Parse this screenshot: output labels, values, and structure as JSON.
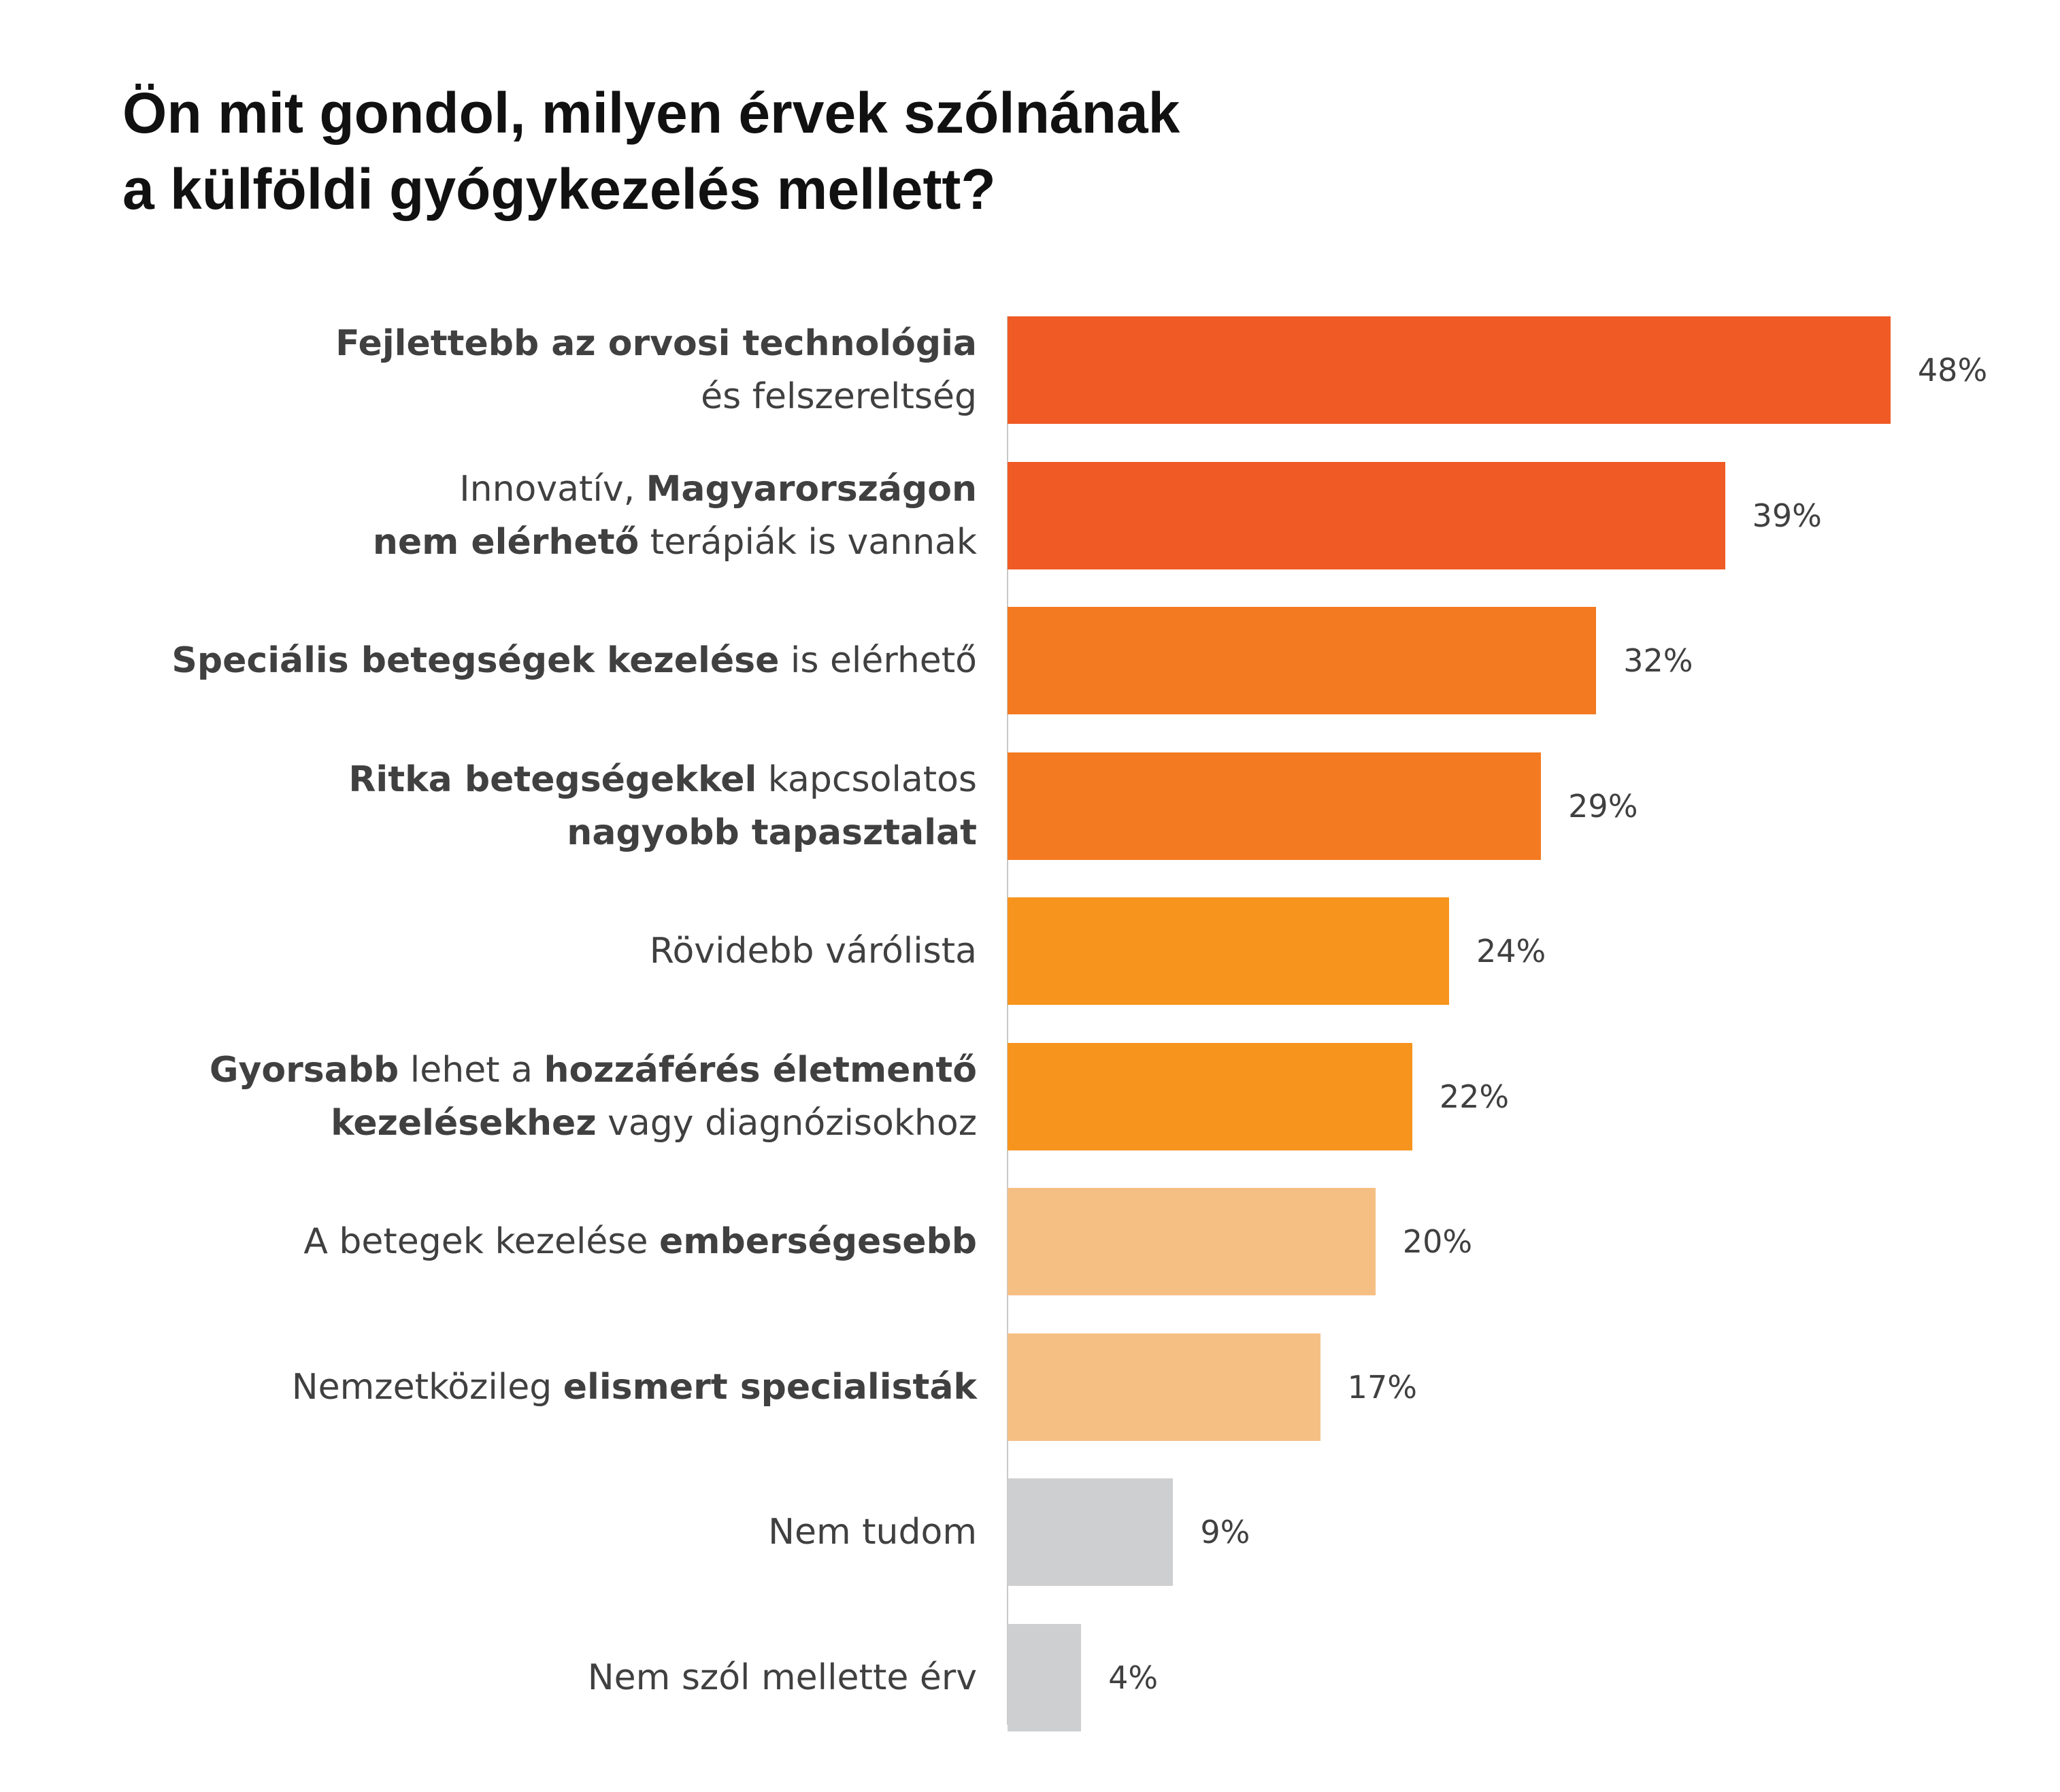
{
  "chart_data": {
    "type": "bar",
    "orientation": "horizontal",
    "title": [
      "Ön mit gondol, milyen érvek szólnának",
      "a külföldi gyógykezelés mellett?"
    ],
    "xlim": [
      0,
      48
    ],
    "grid": false,
    "legend": "none",
    "categories": [
      {
        "lines": [
          [
            {
              "t": "Fejlettebb az orvosi technológia",
              "b": true
            }
          ],
          [
            {
              "t": "és felszereltség",
              "b": false
            }
          ]
        ]
      },
      {
        "lines": [
          [
            {
              "t": "Innovatív, ",
              "b": false
            },
            {
              "t": "Magyarországon",
              "b": true
            }
          ],
          [
            {
              "t": "nem elérhető",
              "b": true
            },
            {
              "t": " terápiák is vannak",
              "b": false
            }
          ]
        ]
      },
      {
        "lines": [
          [
            {
              "t": "Speciális betegségek kezelése",
              "b": true
            },
            {
              "t": " is elérhető",
              "b": false
            }
          ]
        ]
      },
      {
        "lines": [
          [
            {
              "t": "Ritka betegségekkel",
              "b": true
            },
            {
              "t": " kapcsolatos",
              "b": false
            }
          ],
          [
            {
              "t": "nagyobb tapasztalat",
              "b": true
            }
          ]
        ]
      },
      {
        "lines": [
          [
            {
              "t": "Rövidebb várólista",
              "b": false
            }
          ]
        ]
      },
      {
        "lines": [
          [
            {
              "t": "Gyorsabb",
              "b": true
            },
            {
              "t": " lehet a ",
              "b": false
            },
            {
              "t": "hozzáférés életmentő",
              "b": true
            }
          ],
          [
            {
              "t": "kezelésekhez",
              "b": true
            },
            {
              "t": " vagy diagnózisokhoz",
              "b": false
            }
          ]
        ]
      },
      {
        "lines": [
          [
            {
              "t": "A betegek kezelése ",
              "b": false
            },
            {
              "t": "emberségesebb",
              "b": true
            }
          ]
        ]
      },
      {
        "lines": [
          [
            {
              "t": "Nemzetközileg ",
              "b": false
            },
            {
              "t": "elismert specialisták",
              "b": true
            }
          ]
        ]
      },
      {
        "lines": [
          [
            {
              "t": "Nem tudom",
              "b": false
            }
          ]
        ]
      },
      {
        "lines": [
          [
            {
              "t": "Nem szól mellette érv",
              "b": false
            }
          ]
        ]
      }
    ],
    "values": [
      48,
      39,
      32,
      29,
      24,
      22,
      20,
      17,
      9,
      4
    ],
    "value_labels": [
      "48%",
      "39%",
      "32%",
      "29%",
      "24%",
      "22%",
      "20%",
      "17%",
      "9%",
      "4%"
    ],
    "colors": [
      "#F05A24",
      "#F05A24",
      "#F37A21",
      "#F37A21",
      "#F7941D",
      "#F7941D",
      "#F5BF84",
      "#F5BF84",
      "#CECFD1",
      "#CECFD1"
    ]
  }
}
